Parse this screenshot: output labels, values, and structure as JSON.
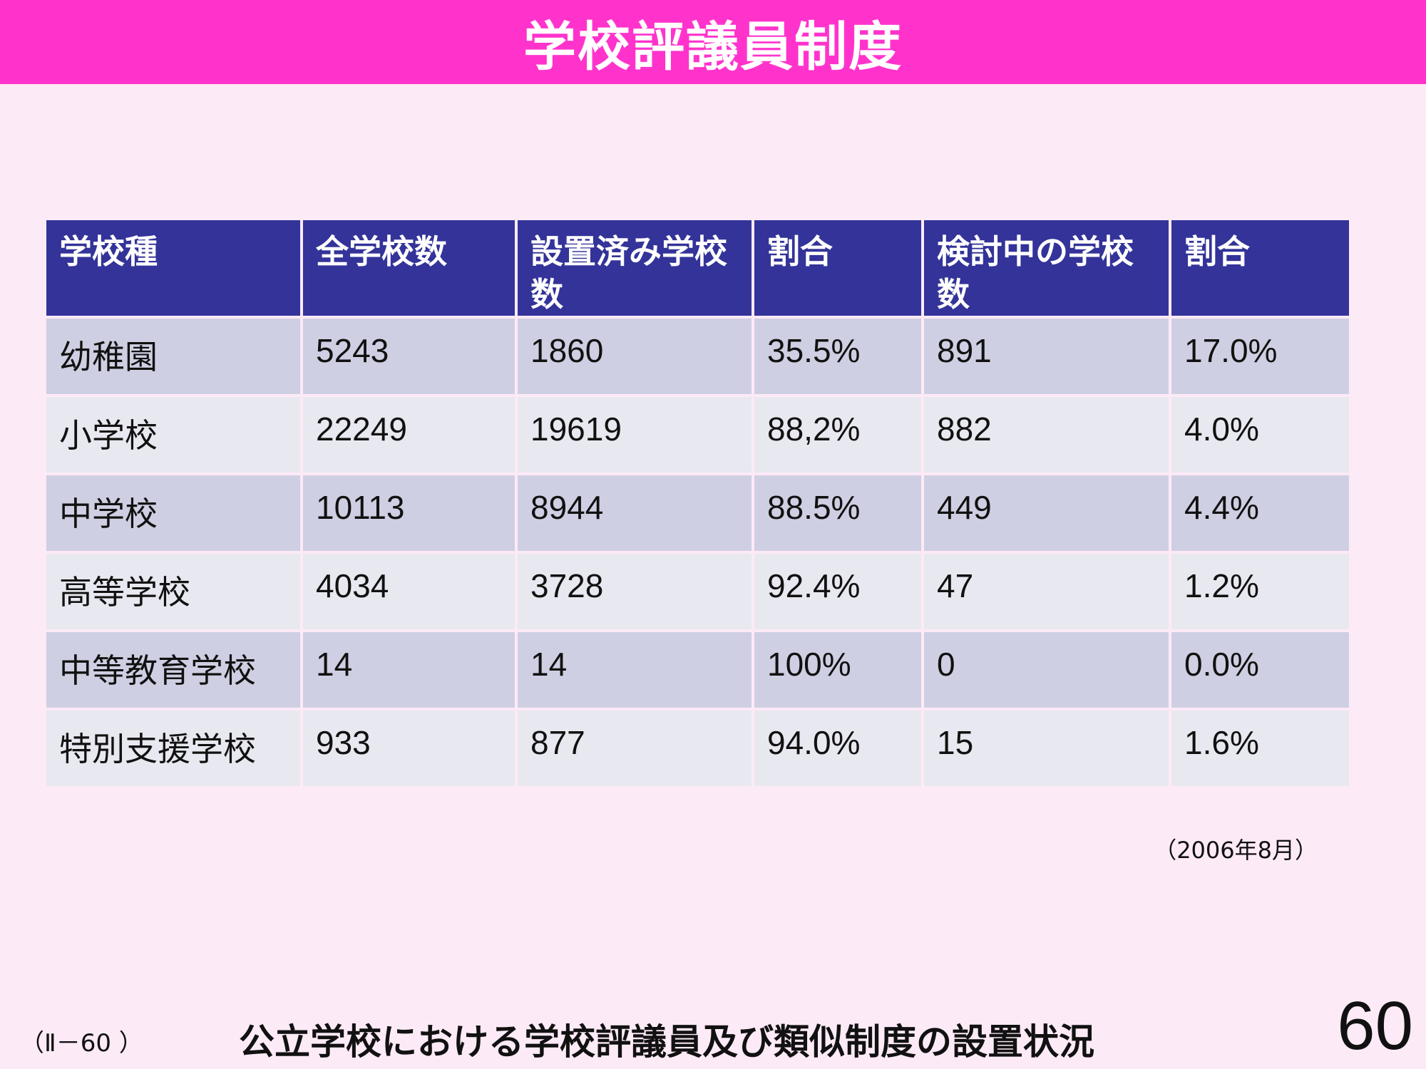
{
  "title": "学校評議員制度",
  "table": {
    "headers": [
      "学校種",
      "全学校数",
      "設置済み学校数",
      "割合",
      "検討中の学校数",
      "割合"
    ],
    "rows": [
      [
        "幼稚園",
        "5243",
        "1860",
        "35.5%",
        "891",
        "17.0%"
      ],
      [
        "小学校",
        "22249",
        "19619",
        "88,2%",
        "882",
        "4.0%"
      ],
      [
        "中学校",
        "10113",
        "8944",
        "88.5%",
        "449",
        "4.4%"
      ],
      [
        "高等学校",
        "4034",
        "3728",
        "92.4%",
        "47",
        "1.2%"
      ],
      [
        "中等教育学校",
        "14",
        "14",
        "100%",
        "0",
        "0.0%"
      ],
      [
        "特別支援学校",
        "933",
        "877",
        "94.0%",
        "15",
        "1.6%"
      ]
    ]
  },
  "date_note": "（2006年8月）",
  "footer": {
    "code": "（Ⅱ－60 ）",
    "title": "公立学校における学校評議員及び類似制度の設置状況",
    "page_number": "60"
  }
}
